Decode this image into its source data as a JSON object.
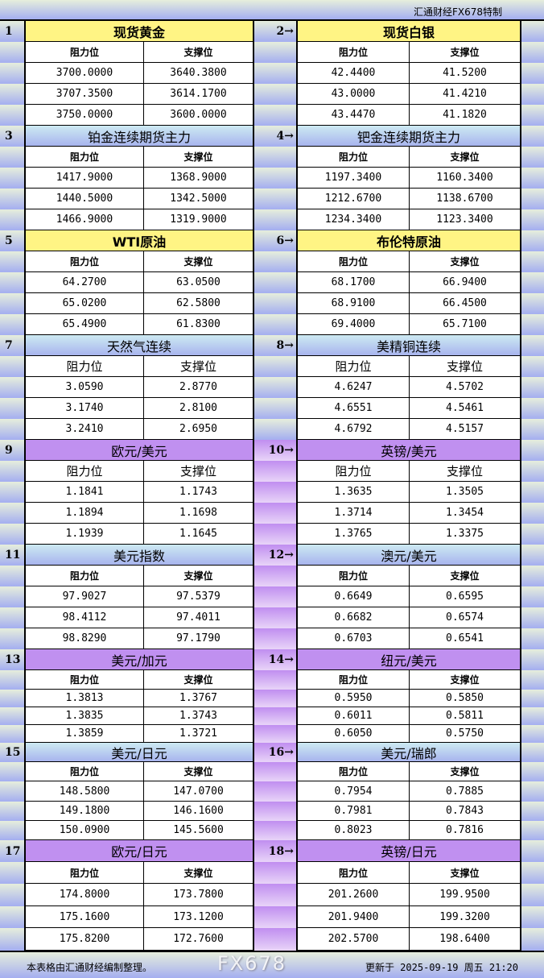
{
  "brand": "汇通财经FX678特制",
  "colors": {
    "yellow": "#fff484",
    "blue": "#b8c8f0",
    "purple": "#c090f0"
  },
  "pairs": [
    {
      "left": {
        "num": "1",
        "title": "现货黄金",
        "res": "阻力位",
        "sup": "支撑位",
        "rows": [
          [
            "3700.0000",
            "3640.3800"
          ],
          [
            "3707.3500",
            "3614.1700"
          ],
          [
            "3750.0000",
            "3600.0000"
          ]
        ]
      },
      "right": {
        "num": "2→",
        "title": "现货白银",
        "res": "阻力位",
        "sup": "支撑位",
        "rows": [
          [
            "42.4400",
            "41.5200"
          ],
          [
            "43.0000",
            "41.4210"
          ],
          [
            "43.4470",
            "41.1820"
          ]
        ]
      },
      "color": "yellow"
    },
    {
      "left": {
        "num": "3",
        "title": "铂金连续期货主力",
        "res": "阻力位",
        "sup": "支撑位",
        "rows": [
          [
            "1417.9000",
            "1368.9000"
          ],
          [
            "1440.5000",
            "1342.5000"
          ],
          [
            "1466.9000",
            "1319.9000"
          ]
        ]
      },
      "right": {
        "num": "4→",
        "title": "钯金连续期货主力",
        "res": "阻力位",
        "sup": "支撑位",
        "rows": [
          [
            "1197.3400",
            "1160.3400"
          ],
          [
            "1212.6700",
            "1138.6700"
          ],
          [
            "1234.3400",
            "1123.3400"
          ]
        ]
      },
      "color": "blue"
    },
    {
      "left": {
        "num": "5",
        "title": "WTI原油",
        "res": "阻力位",
        "sup": "支撑位",
        "rows": [
          [
            "64.2700",
            "63.0500"
          ],
          [
            "65.0200",
            "62.5800"
          ],
          [
            "65.4900",
            "61.8300"
          ]
        ]
      },
      "right": {
        "num": "6→",
        "title": "布伦特原油",
        "res": "阻力位",
        "sup": "支撑位",
        "rows": [
          [
            "68.1700",
            "66.9400"
          ],
          [
            "68.9100",
            "66.4500"
          ],
          [
            "69.4000",
            "65.7100"
          ]
        ]
      },
      "color": "yellow"
    },
    {
      "left": {
        "num": "7",
        "title": "天然气连续",
        "res": "阻力位",
        "sup": "支撑位",
        "rows": [
          [
            "3.0590",
            "2.8770"
          ],
          [
            "3.1740",
            "2.8100"
          ],
          [
            "3.2410",
            "2.6950"
          ]
        ]
      },
      "right": {
        "num": "8→",
        "title": "美精铜连续",
        "res": "阻力位",
        "sup": "支撑位",
        "rows": [
          [
            "4.6247",
            "4.5702"
          ],
          [
            "4.6551",
            "4.5461"
          ],
          [
            "4.6792",
            "4.5157"
          ]
        ]
      },
      "color": "blue"
    },
    {
      "left": {
        "num": "9",
        "title": "欧元/美元",
        "res": "阻力位",
        "sup": "支撑位",
        "rows": [
          [
            "1.1841",
            "1.1743"
          ],
          [
            "1.1894",
            "1.1698"
          ],
          [
            "1.1939",
            "1.1645"
          ]
        ]
      },
      "right": {
        "num": "10→",
        "title": "英镑/美元",
        "res": "阻力位",
        "sup": "支撑位",
        "rows": [
          [
            "1.3635",
            "1.3505"
          ],
          [
            "1.3714",
            "1.3454"
          ],
          [
            "1.3765",
            "1.3375"
          ]
        ]
      },
      "color": "purple"
    },
    {
      "left": {
        "num": "11",
        "title": "美元指数",
        "res": "阻力位",
        "sup": "支撑位",
        "rows": [
          [
            "97.9027",
            "97.5379"
          ],
          [
            "98.4112",
            "97.4011"
          ],
          [
            "98.8290",
            "97.1790"
          ]
        ]
      },
      "right": {
        "num": "12→",
        "title": "澳元/美元",
        "res": "阻力位",
        "sup": "支撑位",
        "rows": [
          [
            "0.6649",
            "0.6595"
          ],
          [
            "0.6682",
            "0.6574"
          ],
          [
            "0.6703",
            "0.6541"
          ]
        ]
      },
      "color": "blue"
    },
    {
      "left": {
        "num": "13",
        "title": "美元/加元",
        "res": "阻力位",
        "sup": "支撑位",
        "rows": [
          [
            "1.3813",
            "1.3767"
          ],
          [
            "1.3835",
            "1.3743"
          ],
          [
            "1.3859",
            "1.3721"
          ]
        ]
      },
      "right": {
        "num": "14→",
        "title": "纽元/美元",
        "res": "阻力位",
        "sup": "支撑位",
        "rows": [
          [
            "0.5950",
            "0.5850"
          ],
          [
            "0.6011",
            "0.5811"
          ],
          [
            "0.6050",
            "0.5750"
          ]
        ]
      },
      "color": "purple"
    },
    {
      "left": {
        "num": "15",
        "title": "美元/日元",
        "res": "阻力位",
        "sup": "支撑位",
        "rows": [
          [
            "148.5800",
            "147.0700"
          ],
          [
            "149.1800",
            "146.1600"
          ],
          [
            "150.0900",
            "145.5600"
          ]
        ]
      },
      "right": {
        "num": "16→",
        "title": "美元/瑞郎",
        "res": "阻力位",
        "sup": "支撑位",
        "rows": [
          [
            "0.7954",
            "0.7885"
          ],
          [
            "0.7981",
            "0.7843"
          ],
          [
            "0.8023",
            "0.7816"
          ]
        ]
      },
      "color": "blue"
    },
    {
      "left": {
        "num": "17",
        "title": "欧元/日元",
        "res": "阻力位",
        "sup": "支撑位",
        "rows": [
          [
            "174.8000",
            "173.7800"
          ],
          [
            "175.1600",
            "173.1200"
          ],
          [
            "175.8200",
            "172.7600"
          ]
        ]
      },
      "right": {
        "num": "18→",
        "title": "英镑/日元",
        "res": "阻力位",
        "sup": "支撑位",
        "rows": [
          [
            "201.2600",
            "199.9500"
          ],
          [
            "201.9400",
            "199.3200"
          ],
          [
            "202.5700",
            "198.6400"
          ]
        ]
      },
      "color": "purple"
    }
  ],
  "footer": {
    "note": "本表格由汇通财经编制整理。",
    "updated": "更新于 2025-09-19 周五 21:20",
    "watermark": "FX678"
  }
}
